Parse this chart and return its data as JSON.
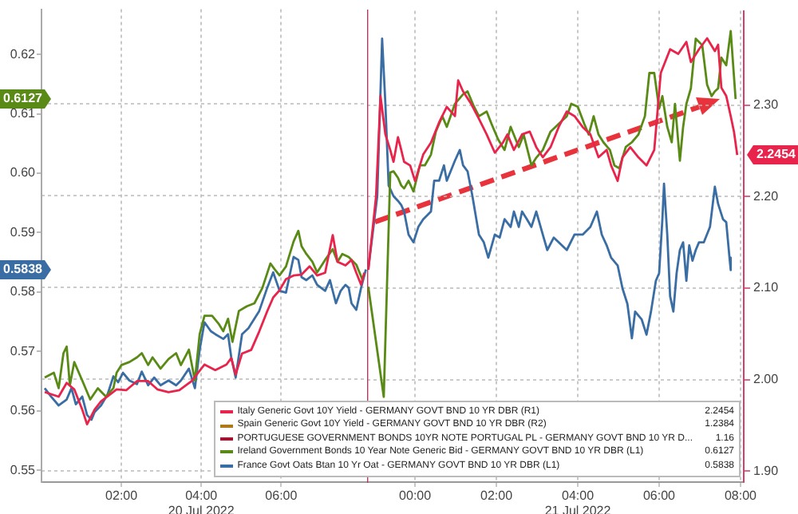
{
  "chart_data": [
    {
      "type": "line",
      "grid": true,
      "xlim": [
        0,
        8.15
      ],
      "xticks": [
        {
          "value": 2,
          "label": "02:00"
        },
        {
          "value": 4,
          "label": "04:00\n20 Jul 2022"
        },
        {
          "value": 6,
          "label": "06:00"
        }
      ],
      "ylim": [
        0.548,
        0.6276
      ],
      "yticks": [
        0.55,
        0.56,
        0.57,
        0.58,
        0.59,
        {
          "value": 0.6,
          "label": "0.60"
        },
        0.61,
        0.62
      ],
      "y2lim": [
        1.888,
        2.403
      ],
      "series": [
        {
          "color": "#e8244c",
          "axis": "y2",
          "x": [
            0.08,
            0.43,
            0.63,
            0.82,
            1.02,
            1.14,
            1.33,
            1.49,
            1.73,
            1.88,
            2.12,
            2.39,
            2.67,
            2.9,
            3.18,
            3.45,
            3.76,
            4.08,
            4.35,
            4.63,
            4.75,
            4.86,
            5.02,
            5.25,
            5.45,
            5.65,
            5.8,
            5.96,
            6.12,
            6.31,
            6.51,
            6.71,
            6.9,
            7.1,
            7.29,
            7.41,
            7.61,
            7.76,
            7.88,
            8,
            8.08
          ],
          "values": [
            1.986,
            1.981,
            1.996,
            1.989,
            1.967,
            1.951,
            1.967,
            1.976,
            1.984,
            1.989,
            1.988,
            1.998,
            1.998,
            1.989,
            1.986,
            1.988,
            1.998,
            2.016,
            2.01,
            2.016,
            2.023,
            2.005,
            2.028,
            2.032,
            2.052,
            2.074,
            2.089,
            2.097,
            2.109,
            2.113,
            2.114,
            2.123,
            2.113,
            2.116,
            2.157,
            2.128,
            2.124,
            2.13,
            2.116,
            2.103,
            2.116
          ]
        },
        {
          "color": "#5a8a16",
          "x": [
            0.08,
            0.31,
            0.43,
            0.55,
            0.63,
            0.71,
            0.82,
            1.02,
            1.22,
            1.41,
            1.61,
            1.8,
            1.88,
            2,
            2.2,
            2.39,
            2.51,
            2.67,
            2.78,
            2.98,
            3.18,
            3.37,
            3.49,
            3.69,
            3.84,
            3.96,
            4.08,
            4.27,
            4.43,
            4.55,
            4.67,
            4.78,
            4.94,
            5.14,
            5.33,
            5.53,
            5.73,
            5.84,
            5.96,
            6.12,
            6.31,
            6.43,
            6.51,
            6.63,
            6.78,
            6.9,
            7.1,
            7.29,
            7.41,
            7.53,
            7.69,
            7.88,
            8.04
          ],
          "values": [
            0.5656,
            0.5664,
            0.5638,
            0.5697,
            0.5708,
            0.5643,
            0.5682,
            0.5651,
            0.5619,
            0.5638,
            0.5624,
            0.5638,
            0.5664,
            0.5677,
            0.5682,
            0.569,
            0.5697,
            0.5677,
            0.569,
            0.5671,
            0.5687,
            0.5697,
            0.5677,
            0.5703,
            0.5651,
            0.5729,
            0.576,
            0.576,
            0.5747,
            0.5734,
            0.5755,
            0.5716,
            0.5768,
            0.5776,
            0.5781,
            0.5807,
            0.5848,
            0.5838,
            0.5828,
            0.5843,
            0.5885,
            0.5903,
            0.5877,
            0.5864,
            0.5851,
            0.5833,
            0.5854,
            0.5872,
            0.5851,
            0.5864,
            0.5859,
            0.5846,
            0.582
          ]
        },
        {
          "color": "#3a6da3",
          "x": [
            0.08,
            0.24,
            0.43,
            0.63,
            0.75,
            0.86,
            1.02,
            1.14,
            1.25,
            1.33,
            1.49,
            1.65,
            1.8,
            1.92,
            2.04,
            2.2,
            2.39,
            2.51,
            2.67,
            2.82,
            2.98,
            3.18,
            3.37,
            3.49,
            3.69,
            3.84,
            3.96,
            4.08,
            4.24,
            4.35,
            4.55,
            4.67,
            4.75,
            4.86,
            5.02,
            5.18,
            5.33,
            5.45,
            5.65,
            5.8,
            5.96,
            6.12,
            6.31,
            6.43,
            6.51,
            6.63,
            6.78,
            6.9,
            7.1,
            7.22,
            7.37,
            7.49,
            7.61,
            7.69,
            7.76,
            7.88,
            8,
            8.12
          ],
          "values": [
            0.5638,
            0.5624,
            0.5609,
            0.5619,
            0.5638,
            0.5611,
            0.5624,
            0.5593,
            0.5585,
            0.5598,
            0.5609,
            0.5627,
            0.5658,
            0.5648,
            0.5664,
            0.5651,
            0.5645,
            0.5666,
            0.5643,
            0.5656,
            0.5643,
            0.5651,
            0.5643,
            0.5651,
            0.5671,
            0.5638,
            0.5703,
            0.5749,
            0.5734,
            0.5729,
            0.5721,
            0.5729,
            0.569,
            0.5656,
            0.5729,
            0.5739,
            0.5755,
            0.5768,
            0.5807,
            0.5833,
            0.5802,
            0.5799,
            0.5859,
            0.5854,
            0.5825,
            0.582,
            0.5828,
            0.5812,
            0.5802,
            0.582,
            0.5781,
            0.5802,
            0.5812,
            0.5807,
            0.5781,
            0.577,
            0.5807,
            0.5838
          ]
        }
      ]
    },
    {
      "type": "line",
      "grid": true,
      "legend": "bottom left",
      "xlim": [
        -1.18,
        8.08
      ],
      "xticks": [
        {
          "value": 0,
          "label": "00:00"
        },
        {
          "value": 2,
          "label": "02:00"
        },
        {
          "value": 4,
          "label": "04:00\n21 Jul 2022"
        },
        {
          "value": 6,
          "label": "06:00"
        },
        {
          "value": 8,
          "label": "08:00"
        }
      ],
      "ylim": [
        0.548,
        0.6276
      ],
      "y2lim": [
        1.888,
        2.403
      ],
      "y2ticks": [
        {
          "value": 1.9,
          "label": "1.90"
        },
        {
          "value": 2,
          "label": "2.00"
        },
        {
          "value": 2.1,
          "label": "2.10"
        },
        {
          "value": 2.2,
          "label": "2.20"
        },
        {
          "value": 2.3,
          "label": "2.30"
        }
      ],
      "annotations": [
        "2.2454",
        "1.2384",
        "1.16",
        "0.6127",
        "0.5838",
        "2.2454",
        "0.6127",
        "0.5838"
      ],
      "series": [
        {
          "name": "Italy Generic Govt 10Y Yield - GERMANY GOVT BND 10 YR DBR (R1)",
          "color": "#e8244c",
          "axis": "y2",
          "x": [
            -1.15,
            -0.96,
            -0.85,
            -0.73,
            -0.61,
            -0.53,
            -0.42,
            -0.34,
            -0.27,
            -0.12,
            0,
            0.2,
            0.39,
            0.59,
            0.78,
            0.98,
            1.06,
            1.18,
            1.37,
            1.57,
            1.76,
            1.96,
            2.16,
            2.27,
            2.43,
            2.63,
            2.82,
            2.98,
            3.14,
            3.33,
            3.53,
            3.73,
            3.92,
            4.12,
            4.31,
            4.51,
            4.71,
            4.82,
            4.98,
            5.1,
            5.29,
            5.49,
            5.69,
            5.88,
            6.04,
            6.27,
            6.47,
            6.67,
            6.78,
            6.98,
            7.18,
            7.37,
            7.45,
            7.53,
            7.65,
            7.76,
            7.84,
            7.92
          ],
          "values": [
            2.12,
            2.2,
            2.31,
            2.268,
            2.251,
            2.238,
            2.265,
            2.251,
            2.238,
            2.234,
            2.217,
            2.246,
            2.259,
            2.281,
            2.298,
            2.288,
            2.327,
            2.315,
            2.302,
            2.285,
            2.268,
            2.248,
            2.259,
            2.268,
            2.251,
            2.268,
            2.271,
            2.254,
            2.243,
            2.254,
            2.276,
            2.293,
            2.288,
            2.276,
            2.268,
            2.243,
            2.251,
            2.234,
            2.217,
            2.243,
            2.254,
            2.243,
            2.234,
            2.251,
            2.335,
            2.361,
            2.356,
            2.369,
            2.347,
            2.361,
            2.373,
            2.359,
            2.366,
            2.319,
            2.31,
            2.288,
            2.271,
            2.2454
          ]
        },
        {
          "name": "Spain Generic Govt 10Y Yield - GERMANY GOVT BND 10 YR DBR (R2)",
          "color": "#b07818"
        },
        {
          "name": "PORTUGUESE GOVERNMENT BONDS 10YR NOTE PORTUGAL PL - GERMANY GOVT BND 10 YR D...",
          "color": "#a3122e"
        },
        {
          "name": "Ireland Government Bonds 10 Year Note Generic Bid - GERMANY GOVT BND 10 YR DBR (L1)",
          "color": "#5a8a16",
          "x": [
            -1.15,
            -0.77,
            -0.61,
            -0.53,
            -0.42,
            -0.34,
            -0.27,
            -0.16,
            -0.04,
            0.12,
            0.24,
            0.39,
            0.51,
            0.67,
            0.78,
            0.98,
            1.18,
            1.29,
            1.45,
            1.57,
            1.76,
            1.88,
            2.04,
            2.2,
            2.35,
            2.55,
            2.67,
            2.86,
            2.98,
            3.14,
            3.33,
            3.53,
            3.73,
            3.84,
            4,
            4.16,
            4.27,
            4.39,
            4.51,
            4.63,
            4.79,
            4.9,
            5.02,
            5.18,
            5.33,
            5.49,
            5.65,
            5.76,
            5.88,
            6,
            6.08,
            6.2,
            6.31,
            6.39,
            6.51,
            6.59,
            6.67,
            6.78,
            6.9,
            7.06,
            7.18,
            7.29,
            7.37,
            7.45,
            7.53,
            7.65,
            7.76,
            7.88
          ],
          "values": [
            0.581,
            0.5624,
            0.6003,
            0.6005,
            0.5994,
            0.5981,
            0.5976,
            0.5989,
            0.5971,
            0.6015,
            0.6015,
            0.6033,
            0.6072,
            0.6098,
            0.608,
            0.6119,
            0.6135,
            0.614,
            0.6114,
            0.6098,
            0.6106,
            0.6085,
            0.6059,
            0.6041,
            0.608,
            0.6046,
            0.6067,
            0.6015,
            0.6028,
            0.6041,
            0.6072,
            0.6085,
            0.6098,
            0.6119,
            0.6114,
            0.6085,
            0.6067,
            0.6098,
            0.6067,
            0.6054,
            0.6041,
            0.6015,
            0.601,
            0.6046,
            0.6054,
            0.6067,
            0.6098,
            0.6171,
            0.6171,
            0.6111,
            0.6132,
            0.608,
            0.6054,
            0.6119,
            0.6023,
            0.608,
            0.6119,
            0.6145,
            0.6229,
            0.6218,
            0.6151,
            0.6132,
            0.614,
            0.6145,
            0.6197,
            0.6184,
            0.6242,
            0.6127
          ]
        },
        {
          "name": "France Govt Oats Btan 10 Yr Oat - GERMANY GOVT BND 10 YR DBR (L1)",
          "color": "#3a6da3",
          "x": [
            -1.15,
            -0.93,
            -0.81,
            -0.73,
            -0.65,
            -0.53,
            -0.42,
            -0.34,
            -0.27,
            -0.16,
            -0.04,
            0.08,
            0.2,
            0.39,
            0.47,
            0.59,
            0.71,
            0.78,
            0.98,
            1.1,
            1.18,
            1.29,
            1.41,
            1.57,
            1.69,
            1.8,
            1.96,
            2.08,
            2.2,
            2.35,
            2.43,
            2.55,
            2.63,
            2.75,
            2.86,
            2.98,
            3.14,
            3.25,
            3.41,
            3.53,
            3.73,
            3.92,
            4.12,
            4.31,
            4.47,
            4.59,
            4.71,
            4.82,
            4.98,
            5.1,
            5.22,
            5.33,
            5.41,
            5.57,
            5.69,
            5.8,
            5.92,
            6,
            6.08,
            6.12,
            6.2,
            6.27,
            6.35,
            6.43,
            6.51,
            6.59,
            6.67,
            6.74,
            6.82,
            6.9,
            6.98,
            7.1,
            7.25,
            7.37,
            7.45,
            7.57,
            7.65,
            7.73,
            7.76
          ],
          "values": [
            0.584,
            0.5963,
            0.6229,
            0.6119,
            0.5981,
            0.5963,
            0.5955,
            0.5948,
            0.5937,
            0.5898,
            0.5885,
            0.5911,
            0.5924,
            0.5937,
            0.5989,
            0.5989,
            0.6015,
            0.5989,
            0.6023,
            0.6041,
            0.6015,
            0.6005,
            0.5963,
            0.5898,
            0.5885,
            0.5859,
            0.5898,
            0.5893,
            0.5924,
            0.5911,
            0.5937,
            0.5911,
            0.5937,
            0.5924,
            0.5911,
            0.5937,
            0.5898,
            0.5872,
            0.5893,
            0.5885,
            0.5872,
            0.5898,
            0.5898,
            0.5911,
            0.5937,
            0.5898,
            0.588,
            0.5859,
            0.5846,
            0.5807,
            0.5781,
            0.5723,
            0.5768,
            0.5755,
            0.5729,
            0.5768,
            0.582,
            0.5833,
            0.5924,
            0.5984,
            0.5898,
            0.5794,
            0.5768,
            0.5833,
            0.5872,
            0.5885,
            0.582,
            0.588,
            0.5854,
            0.5872,
            0.5885,
            0.5885,
            0.5911,
            0.5979,
            0.595,
            0.5924,
            0.5919,
            0.5859,
            0.5838
          ]
        }
      ]
    }
  ]
}
